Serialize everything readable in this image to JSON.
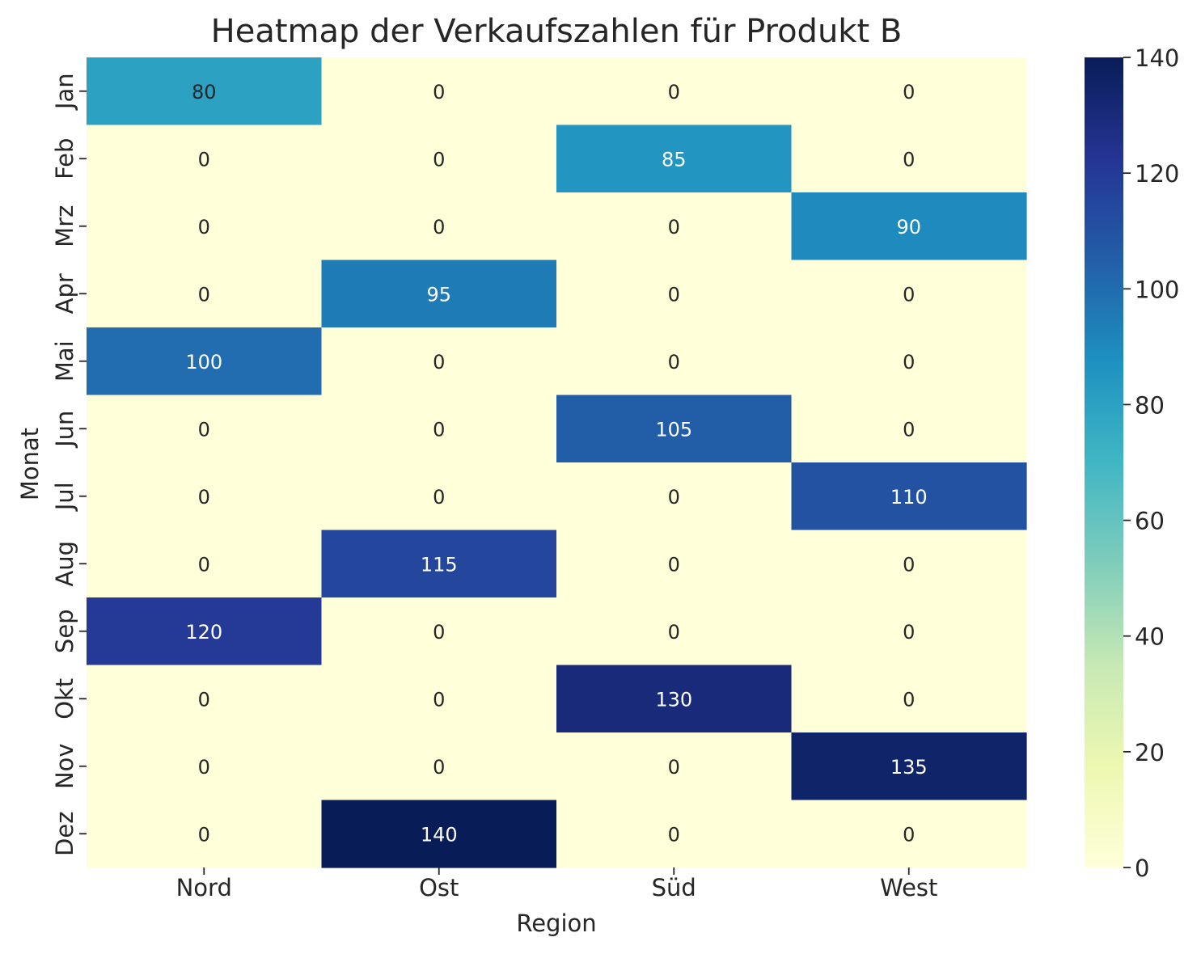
{
  "chart_data": {
    "type": "heatmap",
    "title": "Heatmap der Verkaufszahlen für Produkt B",
    "xlabel": "Region",
    "ylabel": "Monat",
    "x_categories": [
      "Nord",
      "Ost",
      "Süd",
      "West"
    ],
    "y_categories": [
      "Jan",
      "Feb",
      "Mrz",
      "Apr",
      "Mai",
      "Jun",
      "Jul",
      "Aug",
      "Sep",
      "Okt",
      "Nov",
      "Dez"
    ],
    "values": [
      [
        80,
        0,
        0,
        0
      ],
      [
        0,
        0,
        85,
        0
      ],
      [
        0,
        0,
        0,
        90
      ],
      [
        0,
        95,
        0,
        0
      ],
      [
        100,
        0,
        0,
        0
      ],
      [
        0,
        0,
        105,
        0
      ],
      [
        0,
        0,
        0,
        110
      ],
      [
        0,
        115,
        0,
        0
      ],
      [
        120,
        0,
        0,
        0
      ],
      [
        0,
        0,
        130,
        0
      ],
      [
        0,
        0,
        0,
        135
      ],
      [
        0,
        140,
        0,
        0
      ]
    ],
    "colorbar": {
      "range": [
        0,
        140
      ],
      "ticks": [
        0,
        20,
        40,
        60,
        80,
        100,
        120,
        140
      ],
      "colormap": "YlGnBu",
      "colors": [
        "#ffffd9",
        "#edf8b1",
        "#c7e9b4",
        "#7fcdbb",
        "#41b6c4",
        "#1d91c0",
        "#225ea8",
        "#253494",
        "#081d58"
      ]
    },
    "grid": false,
    "annotations": true
  }
}
